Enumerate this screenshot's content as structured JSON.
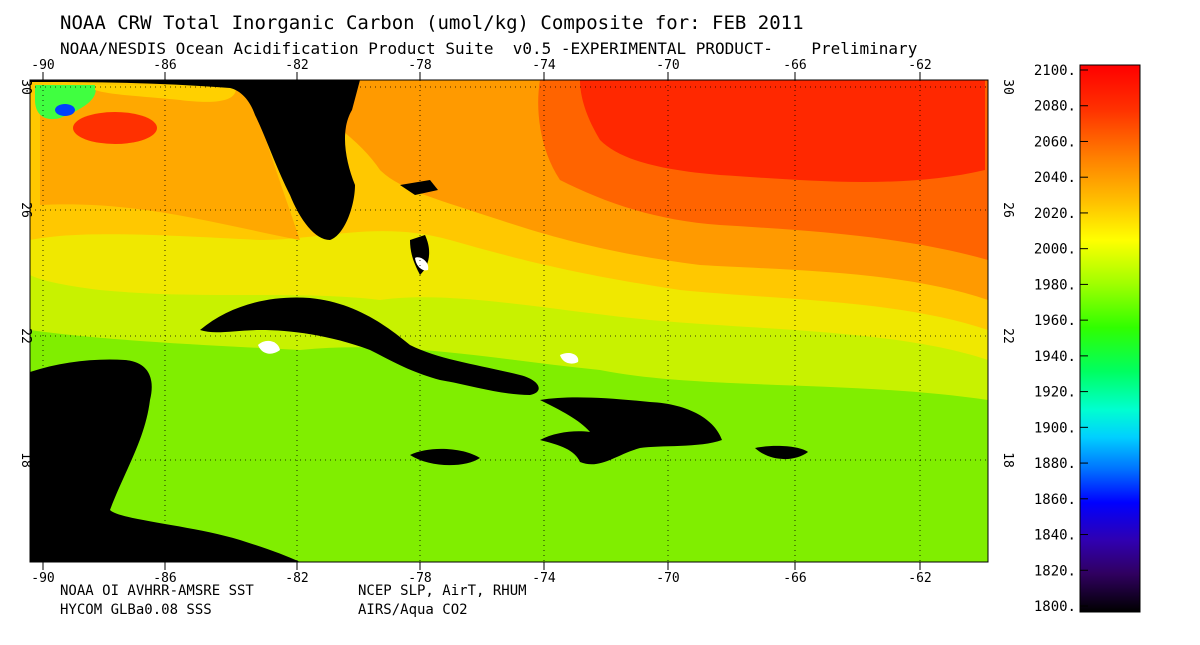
{
  "header": {
    "title": "NOAA CRW Total Inorganic Carbon (umol/kg) Composite for: FEB 2011",
    "subtitle": "NOAA/NESDIS Ocean Acidification Product Suite  v0.5 -EXPERIMENTAL PRODUCT-    Preliminary"
  },
  "footer": {
    "left_line1": "NOAA OI AVHRR-AMSRE SST",
    "left_line2": "HYCOM GLBa0.08 SSS",
    "right_line1": "NCEP SLP, AirT, RHUM",
    "right_line2": "AIRS/Aqua CO2"
  },
  "map": {
    "lon_ticks": [
      "-90",
      "-86",
      "-82",
      "-78",
      "-74",
      "-70",
      "-66",
      "-62"
    ],
    "lat_ticks": [
      "30",
      "26",
      "22",
      "18"
    ],
    "land_color": "#000000",
    "grid": "dotted"
  },
  "colorbar": {
    "labels": [
      "2100.",
      "2080.",
      "2060.",
      "2040.",
      "2020.",
      "2000.",
      "1980.",
      "1960.",
      "1940.",
      "1920.",
      "1900.",
      "1880.",
      "1860.",
      "1840.",
      "1820.",
      "1800."
    ],
    "min": 1800,
    "max": 2100,
    "colors_top_to_bottom": [
      "#ff0000",
      "#ff5a00",
      "#ffa500",
      "#ffff00",
      "#7cfc00",
      "#00ff40",
      "#00ffc8",
      "#00c8ff",
      "#0050ff",
      "#0000d0",
      "#3a00a0",
      "#200040",
      "#000000"
    ]
  }
}
